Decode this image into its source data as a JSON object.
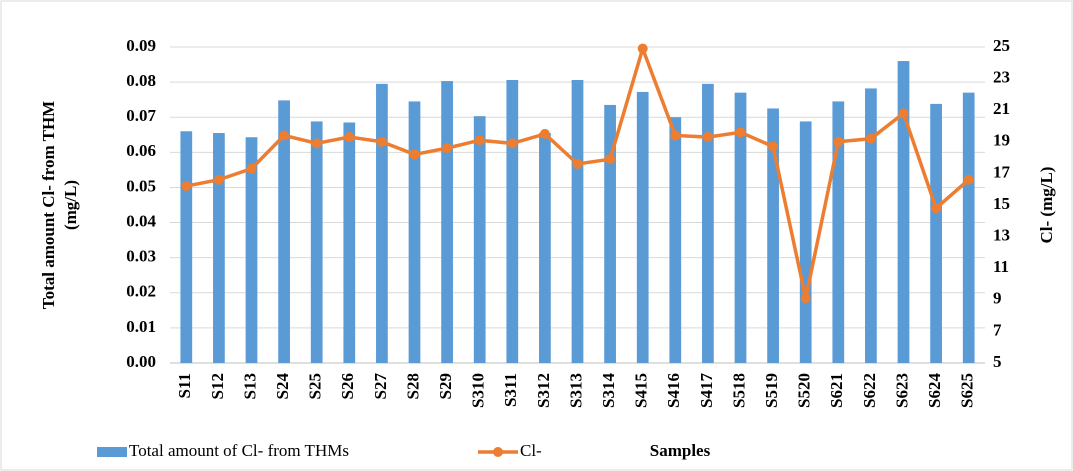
{
  "chart_data": {
    "type": "bar-line",
    "y_label_lines": [
      "Total amount Cl- from THM",
      "(mg/L)"
    ],
    "y2_label": "Cl-  (mg/L)",
    "x_label": "Samples",
    "categories": [
      "S11",
      "S12",
      "S13",
      "S24",
      "S25",
      "S26",
      "S27",
      "S28",
      "S29",
      "S310",
      "S311",
      "S312",
      "S313",
      "S314",
      "S415",
      "S416",
      "S417",
      "S518",
      "S519",
      "S520",
      "S621",
      "S622",
      "S623",
      "S624",
      "S625"
    ],
    "series": [
      {
        "name": "Total amount of Cl- from THMs",
        "type": "bar",
        "color": "#5b9bd5",
        "values": [
          0.066,
          0.0655,
          0.0643,
          0.0748,
          0.0688,
          0.0685,
          0.0795,
          0.0745,
          0.0803,
          0.0703,
          0.0806,
          0.0655,
          0.0806,
          0.0735,
          0.0772,
          0.07,
          0.0795,
          0.077,
          0.0725,
          0.0688,
          0.0745,
          0.0782,
          0.086,
          0.0738,
          0.077
        ]
      },
      {
        "name": "Cl-",
        "type": "line",
        "axis": "y2",
        "color": "#ed7d31",
        "values": [
          16.2,
          16.6,
          17.3,
          19.4,
          18.9,
          19.3,
          19.0,
          18.2,
          18.6,
          19.1,
          18.9,
          19.5,
          17.6,
          17.9,
          24.9,
          19.4,
          19.3,
          19.6,
          18.7,
          9.1,
          19.0,
          19.2,
          20.8,
          14.8,
          16.6
        ]
      }
    ],
    "ylim": [
      0,
      0.09
    ],
    "yticks": [
      {
        "value": 0,
        "label": "0.00"
      },
      0.01,
      0.02,
      0.03,
      0.04,
      0.05,
      0.06,
      0.07,
      0.08,
      0.09
    ],
    "y2lim": [
      5,
      25
    ],
    "y2ticks": [
      5,
      7,
      9,
      11,
      13,
      15,
      17,
      19,
      21,
      23,
      25
    ],
    "grid": true
  }
}
